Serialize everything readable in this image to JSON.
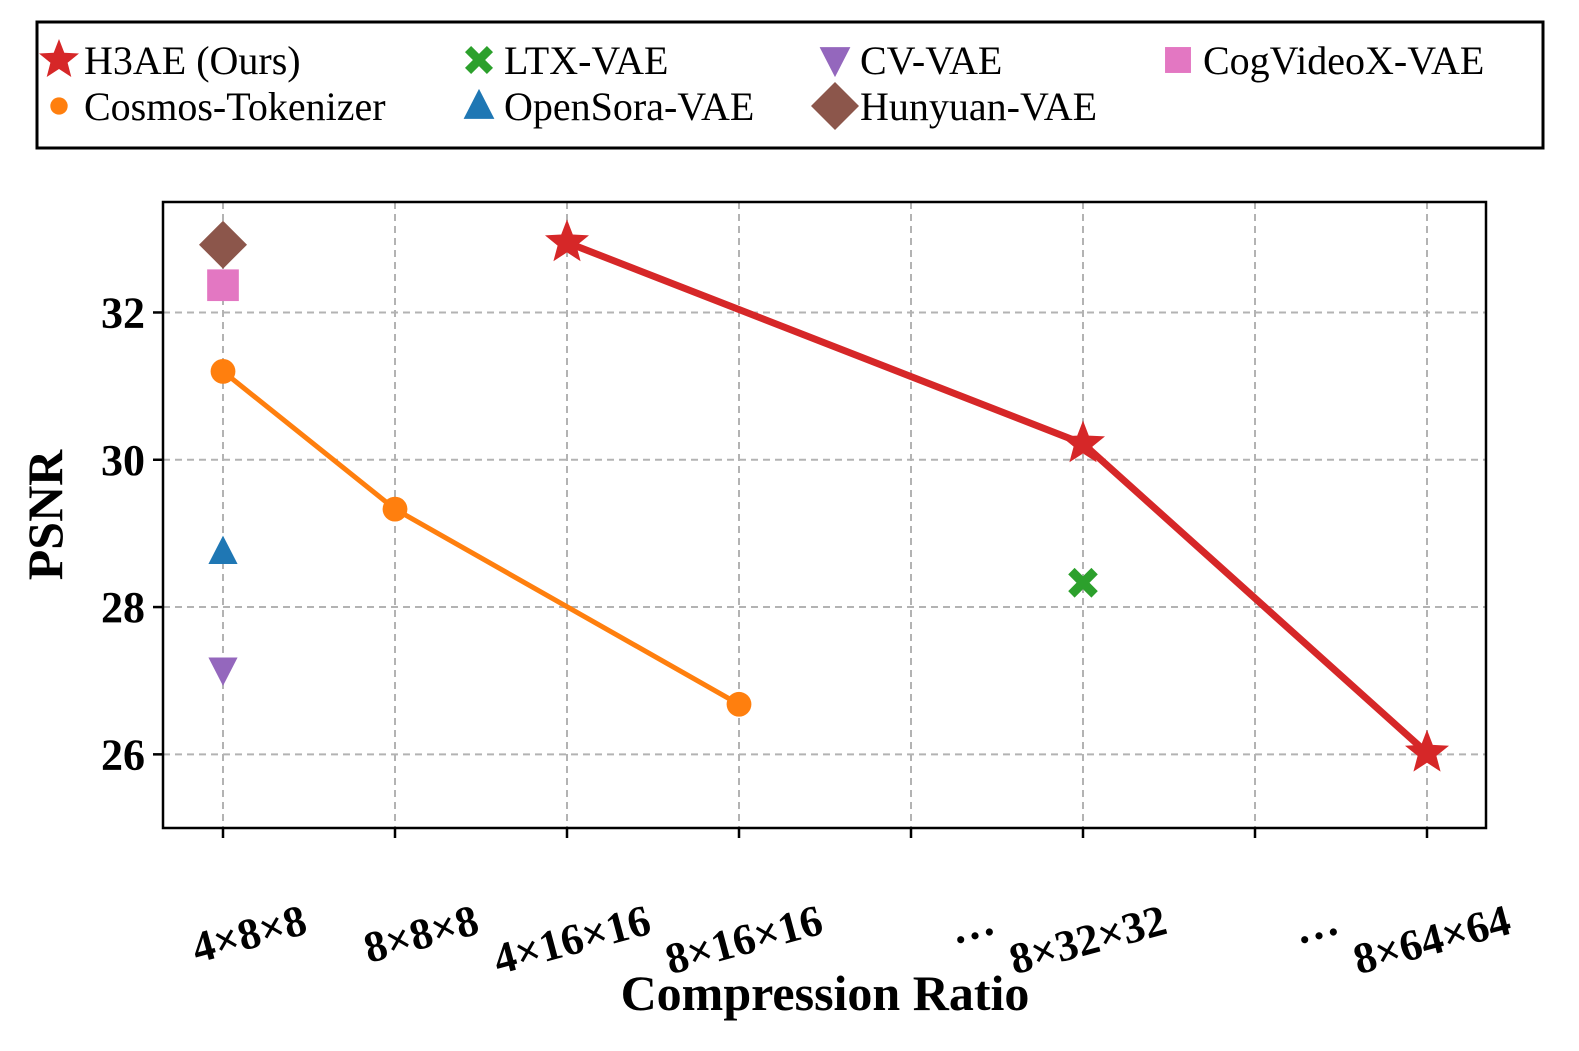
{
  "chart_data": {
    "type": "scatter",
    "xlabel": "Compression Ratio",
    "ylabel": "PSNR",
    "categories": [
      "4×8×8",
      "8×8×8",
      "4×16×16",
      "8×16×16",
      "…",
      "8×32×32",
      "…",
      "8×64×64"
    ],
    "ylim": [
      25.0,
      33.5
    ],
    "yticks": [
      26,
      28,
      30,
      32
    ],
    "grid": true,
    "legend_position": "top",
    "series": [
      {
        "name": "H3AE (Ours)",
        "color": "#d62728",
        "marker": "star",
        "line": true,
        "points": [
          {
            "x": 2,
            "y": 32.95
          },
          {
            "x": 5,
            "y": 30.22
          },
          {
            "x": 7,
            "y": 26.02
          }
        ]
      },
      {
        "name": "Cosmos-Tokenizer",
        "color": "#ff7f0e",
        "marker": "circle",
        "line": true,
        "points": [
          {
            "x": 0,
            "y": 31.2
          },
          {
            "x": 1,
            "y": 29.33
          },
          {
            "x": 3,
            "y": 26.68
          }
        ]
      },
      {
        "name": "LTX-VAE",
        "color": "#2ca02c",
        "marker": "x",
        "line": false,
        "points": [
          {
            "x": 5,
            "y": 28.33
          }
        ]
      },
      {
        "name": "OpenSora-VAE",
        "color": "#1f77b4",
        "marker": "triangle-up",
        "line": false,
        "points": [
          {
            "x": 0,
            "y": 28.75
          }
        ]
      },
      {
        "name": "CV-VAE",
        "color": "#9467bd",
        "marker": "triangle-down",
        "line": false,
        "points": [
          {
            "x": 0,
            "y": 27.15
          }
        ]
      },
      {
        "name": "Hunyuan-VAE",
        "color": "#8c564b",
        "marker": "diamond",
        "line": false,
        "points": [
          {
            "x": 0,
            "y": 32.92
          }
        ]
      },
      {
        "name": "CogVideoX-VAE",
        "color": "#e377c2",
        "marker": "square",
        "line": false,
        "points": [
          {
            "x": 0,
            "y": 32.37
          }
        ]
      }
    ]
  }
}
